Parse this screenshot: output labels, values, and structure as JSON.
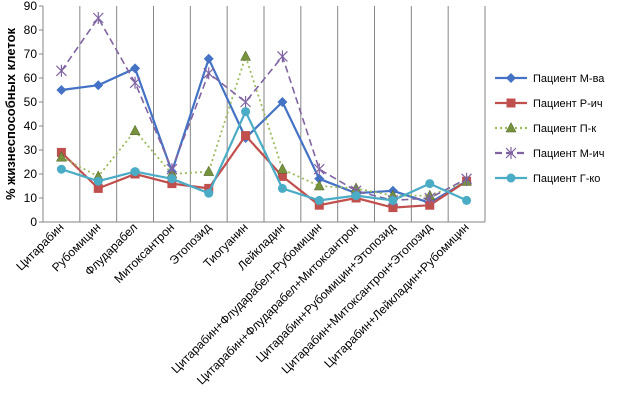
{
  "chart_data": {
    "type": "line",
    "title": "",
    "xlabel": "",
    "ylabel": "% жизнеспособных клеток",
    "ylim": [
      0,
      90
    ],
    "yticks": [
      0,
      10,
      20,
      30,
      40,
      50,
      60,
      70,
      80,
      90
    ],
    "grid": "vertical",
    "legend_position": "right",
    "categories": [
      "Цитарабин",
      "Рубомицин",
      "Флударабел",
      "Митоксантрон",
      "Этопозид",
      "Тиогуанин",
      "Лейкладин",
      "Цитарабин+Флударабел+Рубомицин",
      "Цитарабин+Флударабел+Митоксантрон",
      "Цитарабин+Рубомицин+Этопозид",
      "Цитарабин+Митоксантрон+Этопозид",
      "Цитарабин+Лейкладин+Рубомицин"
    ],
    "series": [
      {
        "name": "Пациент М-ва",
        "color": "#4472C4",
        "marker": "diamond",
        "dash": "solid",
        "values": [
          55,
          57,
          64,
          21,
          68,
          35,
          50,
          18,
          12,
          13,
          8,
          17
        ]
      },
      {
        "name": "Пациент Р-ич",
        "color": "#C0504D",
        "marker": "square",
        "dash": "solid",
        "values": [
          29,
          14,
          20,
          16,
          14,
          36,
          19,
          7,
          10,
          6,
          7,
          17
        ]
      },
      {
        "name": "Пациент П-к",
        "color": "#9BBB59",
        "marker": "triangle",
        "dash": "dotted",
        "values": [
          27,
          19,
          38,
          20,
          21,
          69,
          22,
          15,
          14,
          11,
          11,
          17
        ]
      },
      {
        "name": "Пациент М-ич",
        "color": "#8064A2",
        "marker": "star",
        "dash": "dashed",
        "values": [
          63,
          85,
          58,
          22,
          62,
          50,
          69,
          22,
          13,
          9,
          10,
          18
        ]
      },
      {
        "name": "Пациент Г-ко",
        "color": "#4BACC6",
        "marker": "circle",
        "dash": "solid",
        "values": [
          22,
          17,
          21,
          18,
          12,
          46,
          14,
          9,
          11,
          9,
          16,
          9
        ]
      }
    ]
  }
}
